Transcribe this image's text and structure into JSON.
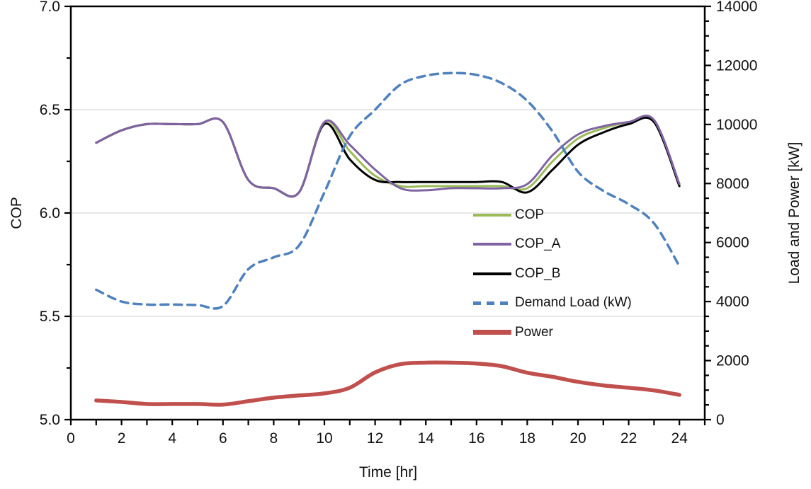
{
  "chart_data": {
    "type": "line",
    "title": "",
    "xlabel": "Time [hr]",
    "x": [
      1,
      2,
      3,
      4,
      5,
      6,
      7,
      8,
      9,
      10,
      11,
      12,
      13,
      14,
      15,
      16,
      17,
      18,
      19,
      20,
      21,
      22,
      23,
      24
    ],
    "x_axis": {
      "min": 0,
      "max": 25,
      "major_step": 2,
      "minor_step": 1,
      "tick_labels": [
        "0",
        "2",
        "4",
        "6",
        "8",
        "10",
        "12",
        "14",
        "16",
        "18",
        "20",
        "22",
        "24"
      ]
    },
    "left_axis": {
      "label": "COP",
      "min": 5.0,
      "max": 7.0,
      "major_step": 0.5,
      "minor_step": 0.25,
      "tick_labels": [
        "5.0",
        "5.5",
        "6.0",
        "6.5",
        "7.0"
      ]
    },
    "right_axis": {
      "label": "Load and Power [kW]",
      "min": 0,
      "max": 14000,
      "major_step": 2000,
      "minor_step": 500,
      "tick_labels": [
        "0",
        "2000",
        "4000",
        "6000",
        "8000",
        "10000",
        "12000",
        "14000"
      ]
    },
    "grid": "horizontal-major-only",
    "legend_position": "inside-center-right",
    "series": [
      {
        "name": "COP",
        "axis": "left",
        "color": "#9BBB59",
        "style": "solid",
        "width": 3,
        "values": [
          6.34,
          6.4,
          6.43,
          6.43,
          6.43,
          6.44,
          6.16,
          6.12,
          6.1,
          6.44,
          6.3,
          6.18,
          6.13,
          6.13,
          6.13,
          6.13,
          6.13,
          6.12,
          6.25,
          6.36,
          6.41,
          6.44,
          6.45,
          6.14
        ]
      },
      {
        "name": "COP_A",
        "axis": "left",
        "color": "#8064A2",
        "style": "solid",
        "width": 3,
        "values": [
          6.34,
          6.4,
          6.43,
          6.43,
          6.43,
          6.44,
          6.16,
          6.12,
          6.1,
          6.44,
          6.33,
          6.21,
          6.12,
          6.11,
          6.12,
          6.12,
          6.12,
          6.14,
          6.28,
          6.38,
          6.42,
          6.44,
          6.45,
          6.14
        ]
      },
      {
        "name": "COP_B",
        "axis": "left",
        "color": "#000000",
        "style": "solid",
        "width": 3,
        "values": [
          6.34,
          6.4,
          6.43,
          6.43,
          6.43,
          6.44,
          6.16,
          6.12,
          6.1,
          6.43,
          6.26,
          6.16,
          6.15,
          6.15,
          6.15,
          6.15,
          6.15,
          6.1,
          6.21,
          6.33,
          6.39,
          6.43,
          6.44,
          6.13
        ]
      },
      {
        "name": "Demand Load (kW)",
        "axis": "right",
        "color": "#4F81BD",
        "style": "dashed",
        "width": 3.5,
        "values": [
          4400,
          4000,
          3900,
          3900,
          3880,
          3850,
          5100,
          5500,
          5900,
          7700,
          9600,
          10500,
          11350,
          11650,
          11740,
          11680,
          11400,
          10800,
          9760,
          8400,
          7750,
          7300,
          6650,
          5200
        ]
      },
      {
        "name": "Power",
        "axis": "right",
        "color": "#C0504D",
        "style": "solid",
        "width": 5.5,
        "values": [
          650,
          600,
          530,
          530,
          530,
          510,
          625,
          745,
          820,
          890,
          1080,
          1600,
          1880,
          1930,
          1930,
          1900,
          1810,
          1590,
          1450,
          1280,
          1160,
          1080,
          990,
          840
        ]
      }
    ],
    "colors": {
      "background": "#FFFFFF",
      "axis_line": "#000000",
      "gridline": "#D9D9D9",
      "tick_text": "#111111"
    }
  }
}
